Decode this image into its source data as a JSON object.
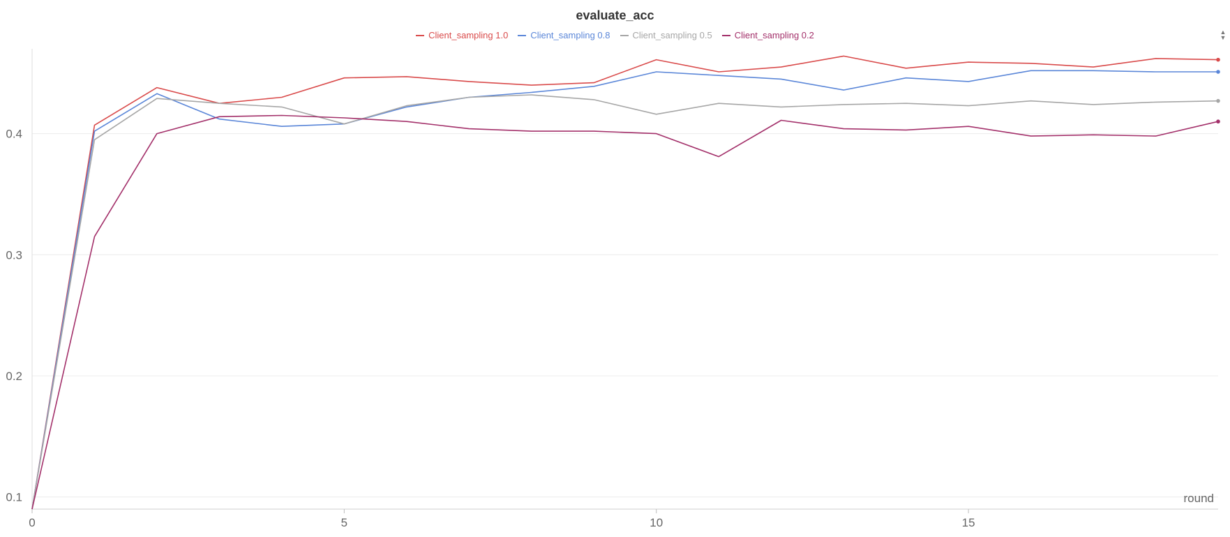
{
  "chart_data": {
    "type": "line",
    "title": "evaluate_acc",
    "xlabel": "round",
    "ylabel": "",
    "xlim": [
      0,
      19
    ],
    "ylim": [
      0.09,
      0.47
    ],
    "x_ticks": [
      0,
      5,
      10,
      15
    ],
    "y_ticks": [
      0.1,
      0.2,
      0.3,
      0.4
    ],
    "x_tick_labels": [
      "0",
      "5",
      "10",
      "15"
    ],
    "y_tick_labels": [
      "0.1",
      "0.2",
      "0.3",
      "0.4"
    ],
    "grid": true,
    "legend": "top-center",
    "x": [
      0,
      1,
      2,
      3,
      4,
      5,
      6,
      7,
      8,
      9,
      10,
      11,
      12,
      13,
      14,
      15,
      16,
      17,
      18,
      19
    ],
    "series": [
      {
        "name": "Client_sampling 1.0",
        "color": "#d94a4a",
        "values": [
          0.09,
          0.407,
          0.438,
          0.425,
          0.43,
          0.446,
          0.447,
          0.443,
          0.44,
          0.442,
          0.461,
          0.451,
          0.455,
          0.464,
          0.454,
          0.459,
          0.458,
          0.455,
          0.462,
          0.461
        ]
      },
      {
        "name": "Client_sampling 0.8",
        "color": "#5a86d8",
        "values": [
          0.09,
          0.402,
          0.433,
          0.412,
          0.406,
          0.408,
          0.422,
          0.43,
          0.434,
          0.439,
          0.451,
          0.448,
          0.445,
          0.436,
          0.446,
          0.443,
          0.452,
          0.452,
          0.451,
          0.451
        ]
      },
      {
        "name": "Client_sampling 0.5",
        "color": "#a6a6a6",
        "values": [
          0.09,
          0.395,
          0.429,
          0.425,
          0.422,
          0.408,
          0.423,
          0.43,
          0.432,
          0.428,
          0.416,
          0.425,
          0.422,
          0.424,
          0.425,
          0.423,
          0.427,
          0.424,
          0.426,
          0.427
        ]
      },
      {
        "name": "Client_sampling 0.2",
        "color": "#a3306a",
        "values": [
          0.09,
          0.315,
          0.4,
          0.414,
          0.415,
          0.413,
          0.41,
          0.404,
          0.402,
          0.402,
          0.4,
          0.381,
          0.411,
          0.404,
          0.403,
          0.406,
          0.398,
          0.399,
          0.398,
          0.41
        ]
      }
    ]
  }
}
